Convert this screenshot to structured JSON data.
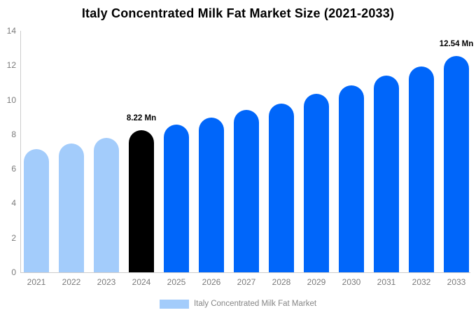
{
  "title": "Italy Concentrated Milk Fat Market Size (2021-2033)",
  "colors": {
    "historical": "#A3CCFB",
    "base": "#000000",
    "forecast": "#0066FA",
    "axis": "#CCCCCC",
    "tick_text": "#7A7A7A",
    "annotation_text": "#000000",
    "legend_text": "#858585"
  },
  "chart_data": {
    "type": "bar",
    "title": "Italy Concentrated Milk Fat Market Size (2021-2033)",
    "categories": [
      "2021",
      "2022",
      "2023",
      "2024",
      "2025",
      "2026",
      "2027",
      "2028",
      "2029",
      "2030",
      "2031",
      "2032",
      "2033"
    ],
    "values": [
      7.15,
      7.45,
      7.8,
      8.22,
      8.55,
      8.95,
      9.4,
      9.8,
      10.35,
      10.85,
      11.4,
      11.95,
      12.54
    ],
    "bar_roles": [
      "historical",
      "historical",
      "historical",
      "base",
      "forecast",
      "forecast",
      "forecast",
      "forecast",
      "forecast",
      "forecast",
      "forecast",
      "forecast",
      "forecast"
    ],
    "unit": "Mn",
    "xlabel": "",
    "ylabel": "",
    "ylim": [
      0,
      14
    ],
    "yticks": [
      0,
      2,
      4,
      6,
      8,
      10,
      12,
      14
    ],
    "grid": false,
    "legend_position": "bottom",
    "annotations": [
      {
        "category": "2024",
        "label": "8.22 Mn"
      },
      {
        "category": "2033",
        "label": "12.54 Mn"
      }
    ]
  },
  "legend": {
    "label": "Italy Concentrated Milk Fat Market"
  }
}
